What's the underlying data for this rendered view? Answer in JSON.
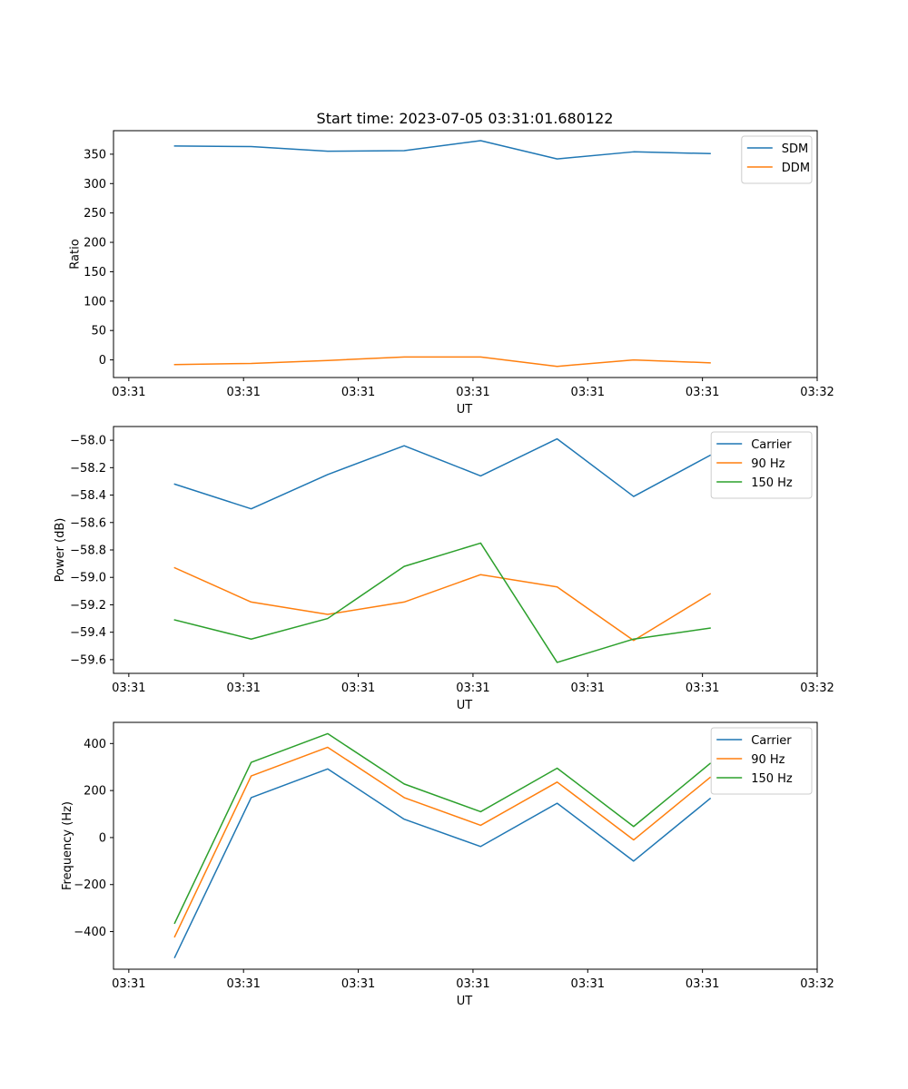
{
  "title": "Start time: 2023-07-05 03:31:01.680122",
  "colors": {
    "blue": "#1f77b4",
    "orange": "#ff7f0e",
    "green": "#2ca02c"
  },
  "chart_data": [
    {
      "type": "line",
      "title": "Start time: 2023-07-05 03:31:01.680122",
      "xlabel": "UT",
      "ylabel": "Ratio",
      "x": [
        1,
        2,
        3,
        4,
        5,
        6,
        7,
        8
      ],
      "xlim": [
        0.2,
        9.4
      ],
      "x_ticks": [
        0.4,
        1.9,
        3.4,
        4.9,
        6.4,
        7.9,
        9.4
      ],
      "x_tick_labels": [
        "03:31",
        "03:31",
        "03:31",
        "03:31",
        "03:31",
        "03:31",
        "03:32"
      ],
      "ylim": [
        -30,
        390
      ],
      "y_ticks": [
        0,
        50,
        100,
        150,
        200,
        250,
        300,
        350
      ],
      "y_tick_labels": [
        "0",
        "50",
        "100",
        "150",
        "200",
        "250",
        "300",
        "350"
      ],
      "legend": "top-right",
      "series": [
        {
          "name": "SDM",
          "color": "#1f77b4",
          "values": [
            364,
            363,
            355,
            356,
            373,
            342,
            354,
            351
          ]
        },
        {
          "name": "DDM",
          "color": "#ff7f0e",
          "values": [
            -8,
            -6,
            -1,
            5,
            5,
            -11,
            0,
            -5
          ]
        }
      ]
    },
    {
      "type": "line",
      "xlabel": "UT",
      "ylabel": "Power (dB)",
      "x": [
        1,
        2,
        3,
        4,
        5,
        6,
        7,
        8
      ],
      "xlim": [
        0.2,
        9.4
      ],
      "x_ticks": [
        0.4,
        1.9,
        3.4,
        4.9,
        6.4,
        7.9,
        9.4
      ],
      "x_tick_labels": [
        "03:31",
        "03:31",
        "03:31",
        "03:31",
        "03:31",
        "03:31",
        "03:32"
      ],
      "ylim": [
        -59.7,
        -57.9
      ],
      "y_ticks": [
        -59.6,
        -59.4,
        -59.2,
        -59.0,
        -58.8,
        -58.6,
        -58.4,
        -58.2,
        -58.0
      ],
      "y_tick_labels": [
        "−59.6",
        "−59.4",
        "−59.2",
        "−59.0",
        "−58.8",
        "−58.6",
        "−58.4",
        "−58.2",
        "−58.0"
      ],
      "legend": "top-right",
      "series": [
        {
          "name": "Carrier",
          "color": "#1f77b4",
          "values": [
            -58.32,
            -58.5,
            -58.25,
            -58.04,
            -58.26,
            -57.99,
            -58.41,
            -58.11
          ]
        },
        {
          "name": "90 Hz",
          "color": "#ff7f0e",
          "values": [
            -58.93,
            -59.18,
            -59.27,
            -59.18,
            -58.98,
            -59.07,
            -59.46,
            -59.12
          ]
        },
        {
          "name": "150 Hz",
          "color": "#2ca02c",
          "values": [
            -59.31,
            -59.45,
            -59.3,
            -58.92,
            -58.75,
            -59.62,
            -59.45,
            -59.37
          ]
        }
      ]
    },
    {
      "type": "line",
      "xlabel": "UT",
      "ylabel": "Frequency (Hz)",
      "x": [
        1,
        2,
        3,
        4,
        5,
        6,
        7,
        8
      ],
      "xlim": [
        0.2,
        9.4
      ],
      "x_ticks": [
        0.4,
        1.9,
        3.4,
        4.9,
        6.4,
        7.9,
        9.4
      ],
      "x_tick_labels": [
        "03:31",
        "03:31",
        "03:31",
        "03:31",
        "03:31",
        "03:31",
        "03:32"
      ],
      "ylim": [
        -560,
        490
      ],
      "y_ticks": [
        -400,
        -200,
        0,
        200,
        400
      ],
      "y_tick_labels": [
        "−400",
        "−200",
        "0",
        "200",
        "400"
      ],
      "legend": "top-right",
      "series": [
        {
          "name": "Carrier",
          "color": "#1f77b4",
          "values": [
            -510,
            170,
            292,
            78,
            -38,
            146,
            -100,
            166
          ]
        },
        {
          "name": "90 Hz",
          "color": "#ff7f0e",
          "values": [
            -422,
            262,
            384,
            170,
            52,
            236,
            -10,
            256
          ]
        },
        {
          "name": "150 Hz",
          "color": "#2ca02c",
          "values": [
            -364,
            320,
            442,
            228,
            110,
            295,
            47,
            315
          ]
        }
      ]
    }
  ]
}
